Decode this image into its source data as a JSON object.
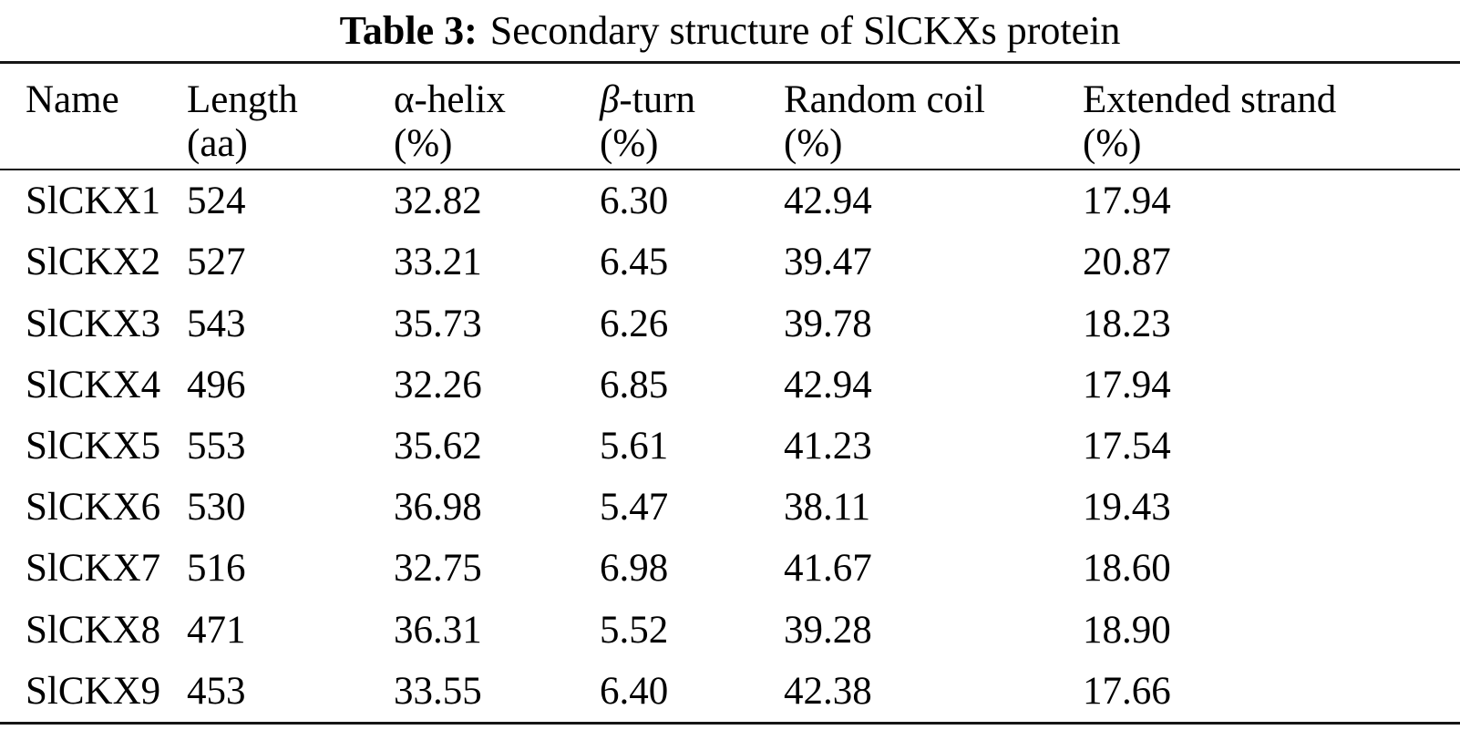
{
  "caption": {
    "label": "Table 3:",
    "text": "Secondary structure of SlCKXs protein"
  },
  "table": {
    "columns": [
      {
        "line1": "Name",
        "line2": ""
      },
      {
        "line1": "Length",
        "line2": "(aa)"
      },
      {
        "symbol": "α",
        "rest": "-helix",
        "line2": "(%)"
      },
      {
        "symbol": "β",
        "rest": "-turn",
        "line2": "(%)"
      },
      {
        "line1": "Random coil",
        "line2": "(%)"
      },
      {
        "line1": "Extended strand",
        "line2": "(%)"
      }
    ],
    "rows": [
      {
        "name": "SlCKX1",
        "length_aa": "524",
        "alpha_helix_pct": "32.82",
        "beta_turn_pct": "6.30",
        "random_coil_pct": "42.94",
        "extended_strand_pct": "17.94"
      },
      {
        "name": "SlCKX2",
        "length_aa": "527",
        "alpha_helix_pct": "33.21",
        "beta_turn_pct": "6.45",
        "random_coil_pct": "39.47",
        "extended_strand_pct": "20.87"
      },
      {
        "name": "SlCKX3",
        "length_aa": "543",
        "alpha_helix_pct": "35.73",
        "beta_turn_pct": "6.26",
        "random_coil_pct": "39.78",
        "extended_strand_pct": "18.23"
      },
      {
        "name": "SlCKX4",
        "length_aa": "496",
        "alpha_helix_pct": "32.26",
        "beta_turn_pct": "6.85",
        "random_coil_pct": "42.94",
        "extended_strand_pct": "17.94"
      },
      {
        "name": "SlCKX5",
        "length_aa": "553",
        "alpha_helix_pct": "35.62",
        "beta_turn_pct": "5.61",
        "random_coil_pct": "41.23",
        "extended_strand_pct": "17.54"
      },
      {
        "name": "SlCKX6",
        "length_aa": "530",
        "alpha_helix_pct": "36.98",
        "beta_turn_pct": "5.47",
        "random_coil_pct": "38.11",
        "extended_strand_pct": "19.43"
      },
      {
        "name": "SlCKX7",
        "length_aa": "516",
        "alpha_helix_pct": "32.75",
        "beta_turn_pct": "6.98",
        "random_coil_pct": "41.67",
        "extended_strand_pct": "18.60"
      },
      {
        "name": "SlCKX8",
        "length_aa": "471",
        "alpha_helix_pct": "36.31",
        "beta_turn_pct": "5.52",
        "random_coil_pct": "39.28",
        "extended_strand_pct": "18.90"
      },
      {
        "name": "SlCKX9",
        "length_aa": "453",
        "alpha_helix_pct": "33.55",
        "beta_turn_pct": "6.40",
        "random_coil_pct": "42.38",
        "extended_strand_pct": "17.66"
      }
    ]
  }
}
